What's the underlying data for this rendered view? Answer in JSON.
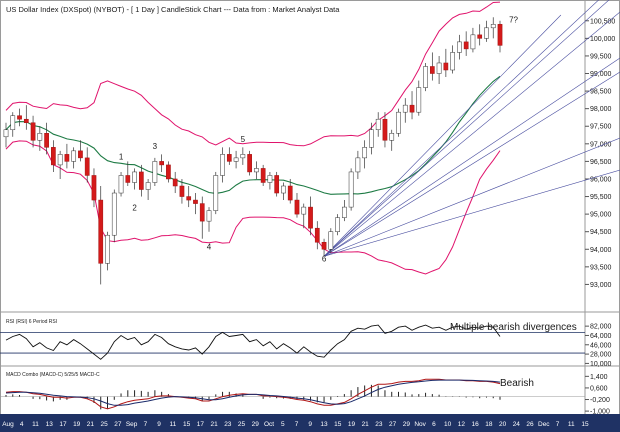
{
  "chart_data": {
    "type": "candlestick",
    "title": "US Dollar Index (DXSpot) (NYBOT) -  [ 1 Day ] CandleStick Chart --- Data from : Market Analyst Data",
    "price_ylim": [
      92.5,
      100.75
    ],
    "price_ticks": [
      "100,500",
      "100,000",
      "99,500",
      "99,000",
      "98,500",
      "98,000",
      "97,500",
      "97,000",
      "96,500",
      "96,000",
      "95,500",
      "95,000",
      "94,500",
      "94,000",
      "93,500",
      "93,000"
    ],
    "price_tick_values": [
      100.5,
      100,
      99.5,
      99,
      98.5,
      98,
      97.5,
      97,
      96.5,
      96,
      95.5,
      95,
      94.5,
      94,
      93.5,
      93
    ],
    "x_labels": [
      "Aug",
      "4",
      "11",
      "13",
      "17",
      "19",
      "21",
      "25",
      "27",
      "Sep",
      "7",
      "9",
      "11",
      "15",
      "17",
      "21",
      "23",
      "25",
      "29",
      "Oct",
      "5",
      "7",
      "9",
      "13",
      "15",
      "19",
      "21",
      "23",
      "27",
      "29",
      "Nov",
      "6",
      "10",
      "12",
      "16",
      "18",
      "20",
      "24",
      "26",
      "Dec",
      "7",
      "11",
      "15"
    ],
    "candles": [
      [
        97.2,
        97.6,
        96.9,
        97.4
      ],
      [
        97.4,
        97.9,
        97.2,
        97.8
      ],
      [
        97.8,
        98.0,
        97.5,
        97.7
      ],
      [
        97.7,
        98.1,
        97.4,
        97.6
      ],
      [
        97.6,
        97.8,
        96.9,
        97.1
      ],
      [
        97.1,
        97.5,
        96.8,
        97.3
      ],
      [
        97.3,
        97.6,
        96.7,
        96.9
      ],
      [
        96.9,
        97.1,
        96.2,
        96.4
      ],
      [
        96.4,
        96.8,
        96.0,
        96.7
      ],
      [
        96.7,
        97.0,
        96.3,
        96.5
      ],
      [
        96.5,
        96.9,
        96.3,
        96.8
      ],
      [
        96.8,
        97.1,
        96.5,
        96.6
      ],
      [
        96.6,
        96.9,
        95.9,
        96.1
      ],
      [
        96.1,
        96.3,
        95.2,
        95.4
      ],
      [
        95.4,
        95.8,
        93.0,
        93.6
      ],
      [
        93.6,
        94.5,
        93.4,
        94.4
      ],
      [
        94.4,
        95.7,
        94.2,
        95.6
      ],
      [
        95.6,
        96.2,
        95.5,
        96.1
      ],
      [
        96.1,
        96.5,
        95.8,
        95.9
      ],
      [
        95.9,
        96.3,
        95.7,
        96.2
      ],
      [
        96.2,
        96.4,
        95.5,
        95.7
      ],
      [
        95.7,
        96.0,
        95.4,
        95.9
      ],
      [
        95.9,
        96.6,
        95.8,
        96.5
      ],
      [
        96.5,
        96.7,
        96.2,
        96.4
      ],
      [
        96.4,
        96.5,
        95.9,
        96.0
      ],
      [
        96.0,
        96.2,
        95.6,
        95.8
      ],
      [
        95.8,
        96.0,
        95.3,
        95.5
      ],
      [
        95.5,
        95.8,
        95.2,
        95.4
      ],
      [
        95.4,
        95.6,
        95.0,
        95.3
      ],
      [
        95.3,
        95.5,
        94.3,
        94.8
      ],
      [
        94.8,
        95.2,
        94.5,
        95.1
      ],
      [
        95.1,
        96.2,
        95.0,
        96.1
      ],
      [
        96.1,
        96.9,
        95.9,
        96.7
      ],
      [
        96.7,
        96.9,
        96.4,
        96.5
      ],
      [
        96.5,
        96.8,
        96.3,
        96.6
      ],
      [
        96.6,
        96.9,
        96.4,
        96.7
      ],
      [
        96.7,
        96.8,
        96.1,
        96.2
      ],
      [
        96.2,
        96.5,
        96.0,
        96.3
      ],
      [
        96.3,
        96.4,
        95.8,
        95.9
      ],
      [
        95.9,
        96.2,
        95.7,
        96.1
      ],
      [
        96.1,
        96.2,
        95.5,
        95.6
      ],
      [
        95.6,
        95.9,
        95.4,
        95.8
      ],
      [
        95.8,
        96.0,
        95.3,
        95.4
      ],
      [
        95.4,
        95.6,
        94.9,
        95.0
      ],
      [
        95.0,
        95.3,
        94.6,
        95.2
      ],
      [
        95.2,
        95.5,
        94.4,
        94.6
      ],
      [
        94.6,
        94.8,
        94.0,
        94.2
      ],
      [
        94.2,
        94.3,
        93.8,
        94.0
      ],
      [
        94.0,
        94.6,
        93.9,
        94.5
      ],
      [
        94.5,
        95.0,
        94.4,
        94.9
      ],
      [
        94.9,
        95.4,
        94.8,
        95.2
      ],
      [
        95.2,
        96.3,
        95.1,
        96.2
      ],
      [
        96.2,
        96.8,
        96.0,
        96.6
      ],
      [
        96.6,
        97.1,
        96.3,
        96.9
      ],
      [
        96.9,
        97.6,
        96.7,
        97.4
      ],
      [
        97.4,
        97.9,
        97.2,
        97.7
      ],
      [
        97.7,
        97.9,
        96.9,
        97.1
      ],
      [
        97.1,
        97.4,
        96.8,
        97.3
      ],
      [
        97.3,
        98.0,
        97.2,
        97.9
      ],
      [
        97.9,
        98.3,
        97.6,
        98.1
      ],
      [
        98.1,
        98.5,
        97.7,
        97.9
      ],
      [
        97.9,
        98.8,
        97.8,
        98.6
      ],
      [
        98.6,
        99.3,
        98.5,
        99.2
      ],
      [
        99.2,
        99.6,
        98.8,
        99.0
      ],
      [
        99.0,
        99.5,
        98.7,
        99.3
      ],
      [
        99.3,
        99.7,
        98.9,
        99.1
      ],
      [
        99.1,
        99.8,
        99.0,
        99.6
      ],
      [
        99.6,
        100.1,
        99.4,
        99.9
      ],
      [
        99.9,
        100.2,
        99.5,
        99.7
      ],
      [
        99.7,
        100.3,
        99.6,
        100.1
      ],
      [
        100.1,
        100.4,
        99.8,
        100.0
      ],
      [
        100.0,
        100.5,
        99.9,
        100.3
      ],
      [
        100.3,
        100.6,
        100.0,
        100.4
      ],
      [
        100.4,
        100.5,
        99.6,
        99.8
      ]
    ],
    "annotations": [
      {
        "text": "1",
        "index": 17,
        "price": 96.55
      },
      {
        "text": "2",
        "index": 19,
        "price": 95.1
      },
      {
        "text": "3",
        "index": 22,
        "price": 96.85
      },
      {
        "text": "4",
        "index": 30,
        "price": 94.0
      },
      {
        "text": "5",
        "index": 35,
        "price": 97.05
      },
      {
        "text": "6",
        "index": 47,
        "price": 93.65
      },
      {
        "text": "7?",
        "index": 75,
        "price": 100.45
      }
    ],
    "rsi_label": "RSI (RSI) 6 Period RSI",
    "rsi_ticks": [
      "82,000",
      "64,000",
      "46,000",
      "28,000",
      "10,000"
    ],
    "rsi_tick_values": [
      82,
      64,
      46,
      28,
      10
    ],
    "rsi_ylim": [
      5,
      90
    ],
    "rsi_levels": [
      70,
      30
    ],
    "rsi_values": [
      55,
      62,
      66,
      58,
      42,
      50,
      40,
      35,
      52,
      46,
      56,
      48,
      38,
      28,
      18,
      30,
      52,
      64,
      56,
      60,
      46,
      52,
      66,
      60,
      48,
      42,
      38,
      36,
      40,
      28,
      42,
      62,
      70,
      62,
      64,
      66,
      52,
      56,
      44,
      52,
      38,
      48,
      40,
      30,
      42,
      32,
      24,
      22,
      36,
      48,
      56,
      72,
      78,
      76,
      82,
      84,
      68,
      72,
      80,
      82,
      74,
      80,
      84,
      78,
      80,
      74,
      80,
      82,
      76,
      80,
      78,
      82,
      80,
      62
    ],
    "rsi_note": "Multiple bearish divergences",
    "macd_label": "MACD Combo (MACD-C) 5/25/5 MACD-C",
    "macd_ticks": [
      "1,400",
      "0,600",
      "-0,200",
      "-1,000"
    ],
    "macd_tick_values": [
      1.4,
      0.6,
      -0.2,
      -1.0
    ],
    "macd_ylim": [
      -1.2,
      1.7
    ],
    "macd_line": [
      0.3,
      0.35,
      0.35,
      0.3,
      0.2,
      0.15,
      0.05,
      -0.05,
      -0.05,
      -0.1,
      -0.05,
      -0.05,
      -0.15,
      -0.35,
      -0.7,
      -0.85,
      -0.7,
      -0.5,
      -0.35,
      -0.25,
      -0.2,
      -0.15,
      0.0,
      0.05,
      0.05,
      0.0,
      -0.05,
      -0.1,
      -0.15,
      -0.3,
      -0.3,
      -0.15,
      0.0,
      0.1,
      0.15,
      0.2,
      0.15,
      0.15,
      0.05,
      0.05,
      0.0,
      -0.05,
      -0.1,
      -0.2,
      -0.25,
      -0.35,
      -0.5,
      -0.6,
      -0.6,
      -0.5,
      -0.4,
      -0.15,
      0.15,
      0.4,
      0.65,
      0.85,
      0.85,
      0.9,
      1.0,
      1.05,
      1.05,
      1.1,
      1.2,
      1.2,
      1.2,
      1.15,
      1.15,
      1.15,
      1.1,
      1.1,
      1.05,
      1.05,
      1.0,
      0.9
    ],
    "macd_signal": [
      0.25,
      0.28,
      0.3,
      0.3,
      0.27,
      0.23,
      0.17,
      0.1,
      0.05,
      0.0,
      -0.02,
      -0.03,
      -0.07,
      -0.15,
      -0.3,
      -0.48,
      -0.6,
      -0.6,
      -0.55,
      -0.45,
      -0.38,
      -0.3,
      -0.2,
      -0.1,
      -0.03,
      0.0,
      -0.02,
      -0.05,
      -0.08,
      -0.15,
      -0.22,
      -0.22,
      -0.15,
      -0.05,
      0.05,
      0.12,
      0.15,
      0.15,
      0.12,
      0.08,
      0.05,
      0.01,
      -0.03,
      -0.1,
      -0.15,
      -0.22,
      -0.32,
      -0.42,
      -0.5,
      -0.52,
      -0.48,
      -0.35,
      -0.15,
      0.05,
      0.28,
      0.5,
      0.65,
      0.75,
      0.85,
      0.92,
      0.98,
      1.02,
      1.08,
      1.12,
      1.14,
      1.14,
      1.14,
      1.14,
      1.13,
      1.12,
      1.1,
      1.08,
      1.05,
      1.0
    ],
    "macd_note": "Bearish",
    "colors": {
      "bull": "#ffffff",
      "bear": "#d41a1a",
      "bollinger": "#e0136c",
      "ma": "#1e7b45",
      "fan": "#4a4fa0",
      "text": "#1a1a1a",
      "axis_bar": "#1f3264",
      "macd": "#b11616",
      "signal": "#1a2a6a"
    }
  }
}
